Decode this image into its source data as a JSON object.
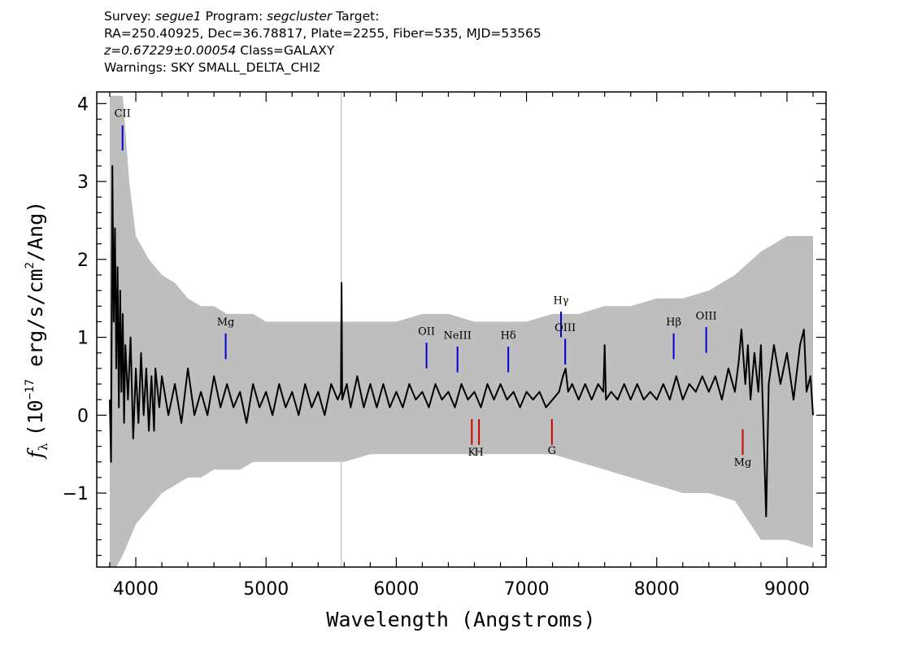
{
  "header": {
    "line1": {
      "survey_label": "Survey:",
      "survey": "segue1",
      "program_label": "Program:",
      "program": "segcluster",
      "target_label": "Target:"
    },
    "line2": "RA=250.40925, Dec=36.78817, Plate=2255, Fiber=535, MJD=53565",
    "line3": {
      "z": "z=0.67229±0.00054",
      "class": "Class=GALAXY"
    },
    "line4": "Warnings: SKY SMALL_DELTA_CHI2"
  },
  "chart_data": {
    "type": "line",
    "xlabel": "Wavelength (Angstroms)",
    "ylabel": "f_λ (10^-17 erg/s/cm^2/Ang)",
    "ylabel_parts": {
      "f": "f",
      "lambda": "λ",
      "unit_a": "(10",
      "exp_a": "−17",
      "unit_b": " erg/s/cm",
      "exp_b": "2",
      "unit_c": "/Ang)"
    },
    "xlim": [
      3700,
      9300
    ],
    "ylim": [
      -1.95,
      4.15
    ],
    "xticks": [
      4000,
      5000,
      6000,
      7000,
      8000,
      9000
    ],
    "xtick_labels": [
      "4000",
      "5000",
      "6000",
      "7000",
      "8000",
      "9000"
    ],
    "yticks": [
      -1,
      0,
      1,
      2,
      3,
      4
    ],
    "ytick_labels": [
      "−1",
      "0",
      "1",
      "2",
      "3",
      "4"
    ],
    "grid": false,
    "colors": {
      "flux": "#000000",
      "error": "#bebebe",
      "emission": "#0000cc",
      "absorption": "#cc0000"
    },
    "sky_line": {
      "x": 5578
    },
    "series": [
      {
        "role": "flux",
        "points": [
          [
            3800,
            0.2
          ],
          [
            3810,
            -0.6
          ],
          [
            3820,
            3.2
          ],
          [
            3830,
            1.2
          ],
          [
            3840,
            2.4
          ],
          [
            3850,
            0.6
          ],
          [
            3860,
            1.9
          ],
          [
            3870,
            0.1
          ],
          [
            3880,
            1.6
          ],
          [
            3890,
            0.3
          ],
          [
            3900,
            1.3
          ],
          [
            3910,
            -0.1
          ],
          [
            3920,
            0.9
          ],
          [
            3940,
            0.2
          ],
          [
            3960,
            1.0
          ],
          [
            3980,
            -0.3
          ],
          [
            4000,
            0.6
          ],
          [
            4020,
            -0.1
          ],
          [
            4040,
            0.8
          ],
          [
            4060,
            0.0
          ],
          [
            4080,
            0.6
          ],
          [
            4100,
            -0.2
          ],
          [
            4120,
            0.5
          ],
          [
            4140,
            -0.2
          ],
          [
            4150,
            0.6
          ],
          [
            4180,
            0.1
          ],
          [
            4200,
            0.5
          ],
          [
            4250,
            0.0
          ],
          [
            4300,
            0.4
          ],
          [
            4350,
            -0.1
          ],
          [
            4400,
            0.6
          ],
          [
            4450,
            0.0
          ],
          [
            4500,
            0.3
          ],
          [
            4550,
            0.0
          ],
          [
            4600,
            0.5
          ],
          [
            4650,
            0.1
          ],
          [
            4700,
            0.4
          ],
          [
            4750,
            0.1
          ],
          [
            4800,
            0.3
          ],
          [
            4850,
            -0.1
          ],
          [
            4900,
            0.4
          ],
          [
            4950,
            0.1
          ],
          [
            5000,
            0.3
          ],
          [
            5050,
            0.0
          ],
          [
            5100,
            0.4
          ],
          [
            5150,
            0.1
          ],
          [
            5200,
            0.3
          ],
          [
            5250,
            0.0
          ],
          [
            5300,
            0.4
          ],
          [
            5350,
            0.1
          ],
          [
            5400,
            0.3
          ],
          [
            5450,
            0.0
          ],
          [
            5500,
            0.4
          ],
          [
            5550,
            0.2
          ],
          [
            5575,
            0.3
          ],
          [
            5580,
            1.7
          ],
          [
            5585,
            0.2
          ],
          [
            5620,
            0.4
          ],
          [
            5650,
            0.1
          ],
          [
            5700,
            0.5
          ],
          [
            5750,
            0.1
          ],
          [
            5800,
            0.4
          ],
          [
            5850,
            0.1
          ],
          [
            5900,
            0.4
          ],
          [
            5950,
            0.1
          ],
          [
            6000,
            0.3
          ],
          [
            6050,
            0.1
          ],
          [
            6100,
            0.4
          ],
          [
            6150,
            0.2
          ],
          [
            6200,
            0.3
          ],
          [
            6250,
            0.1
          ],
          [
            6300,
            0.4
          ],
          [
            6350,
            0.2
          ],
          [
            6400,
            0.3
          ],
          [
            6450,
            0.1
          ],
          [
            6500,
            0.4
          ],
          [
            6550,
            0.2
          ],
          [
            6600,
            0.3
          ],
          [
            6650,
            0.1
          ],
          [
            6700,
            0.4
          ],
          [
            6750,
            0.2
          ],
          [
            6800,
            0.4
          ],
          [
            6850,
            0.2
          ],
          [
            6900,
            0.3
          ],
          [
            6950,
            0.1
          ],
          [
            7000,
            0.3
          ],
          [
            7050,
            0.2
          ],
          [
            7100,
            0.3
          ],
          [
            7150,
            0.1
          ],
          [
            7200,
            0.2
          ],
          [
            7250,
            0.3
          ],
          [
            7280,
            0.5
          ],
          [
            7300,
            0.6
          ],
          [
            7320,
            0.3
          ],
          [
            7350,
            0.4
          ],
          [
            7400,
            0.2
          ],
          [
            7450,
            0.4
          ],
          [
            7500,
            0.2
          ],
          [
            7550,
            0.4
          ],
          [
            7590,
            0.3
          ],
          [
            7600,
            0.9
          ],
          [
            7610,
            0.2
          ],
          [
            7650,
            0.3
          ],
          [
            7700,
            0.2
          ],
          [
            7750,
            0.4
          ],
          [
            7800,
            0.2
          ],
          [
            7850,
            0.4
          ],
          [
            7900,
            0.2
          ],
          [
            7950,
            0.3
          ],
          [
            8000,
            0.2
          ],
          [
            8050,
            0.4
          ],
          [
            8100,
            0.2
          ],
          [
            8150,
            0.5
          ],
          [
            8200,
            0.2
          ],
          [
            8250,
            0.4
          ],
          [
            8300,
            0.3
          ],
          [
            8350,
            0.5
          ],
          [
            8400,
            0.3
          ],
          [
            8450,
            0.5
          ],
          [
            8500,
            0.2
          ],
          [
            8550,
            0.6
          ],
          [
            8600,
            0.3
          ],
          [
            8630,
            0.7
          ],
          [
            8650,
            1.1
          ],
          [
            8680,
            0.4
          ],
          [
            8700,
            0.9
          ],
          [
            8720,
            0.2
          ],
          [
            8750,
            0.8
          ],
          [
            8780,
            0.3
          ],
          [
            8800,
            0.9
          ],
          [
            8820,
            -0.2
          ],
          [
            8840,
            -1.3
          ],
          [
            8860,
            0.4
          ],
          [
            8900,
            0.9
          ],
          [
            8950,
            0.4
          ],
          [
            9000,
            0.8
          ],
          [
            9050,
            0.2
          ],
          [
            9100,
            0.9
          ],
          [
            9130,
            1.1
          ],
          [
            9150,
            0.3
          ],
          [
            9180,
            0.5
          ],
          [
            9200,
            0.0
          ]
        ]
      }
    ],
    "error_band": [
      [
        3800,
        4.1,
        -2.0
      ],
      [
        3850,
        4.1,
        -2.0
      ],
      [
        3900,
        4.1,
        -1.8
      ],
      [
        3950,
        3.0,
        -1.6
      ],
      [
        4000,
        2.3,
        -1.4
      ],
      [
        4100,
        2.0,
        -1.2
      ],
      [
        4200,
        1.8,
        -1.0
      ],
      [
        4300,
        1.7,
        -0.9
      ],
      [
        4400,
        1.5,
        -0.8
      ],
      [
        4500,
        1.4,
        -0.8
      ],
      [
        4600,
        1.4,
        -0.7
      ],
      [
        4700,
        1.3,
        -0.7
      ],
      [
        4800,
        1.3,
        -0.7
      ],
      [
        4900,
        1.3,
        -0.6
      ],
      [
        5000,
        1.2,
        -0.6
      ],
      [
        5200,
        1.2,
        -0.6
      ],
      [
        5400,
        1.2,
        -0.6
      ],
      [
        5600,
        1.2,
        -0.6
      ],
      [
        5800,
        1.2,
        -0.5
      ],
      [
        6000,
        1.2,
        -0.5
      ],
      [
        6200,
        1.3,
        -0.5
      ],
      [
        6400,
        1.3,
        -0.5
      ],
      [
        6600,
        1.2,
        -0.5
      ],
      [
        6800,
        1.2,
        -0.5
      ],
      [
        7000,
        1.2,
        -0.5
      ],
      [
        7200,
        1.3,
        -0.5
      ],
      [
        7400,
        1.3,
        -0.6
      ],
      [
        7600,
        1.4,
        -0.7
      ],
      [
        7800,
        1.4,
        -0.8
      ],
      [
        8000,
        1.5,
        -0.9
      ],
      [
        8200,
        1.5,
        -1.0
      ],
      [
        8400,
        1.6,
        -1.0
      ],
      [
        8600,
        1.8,
        -1.1
      ],
      [
        8800,
        2.1,
        -1.6
      ],
      [
        9000,
        2.3,
        -1.6
      ],
      [
        9200,
        2.3,
        -1.7
      ]
    ],
    "annotations": [
      {
        "label": "CII",
        "kind": "emission",
        "x": 3898,
        "y0": 3.4,
        "y1": 3.72,
        "label_y": 3.83
      },
      {
        "label": "Mg",
        "kind": "emission",
        "x": 4690,
        "y0": 0.72,
        "y1": 1.05,
        "label_y": 1.15
      },
      {
        "label": "OII",
        "kind": "emission",
        "x": 6232,
        "y0": 0.6,
        "y1": 0.93,
        "label_y": 1.03
      },
      {
        "label": "NeIII",
        "kind": "emission",
        "x": 6470,
        "y0": 0.55,
        "y1": 0.88,
        "label_y": 0.98
      },
      {
        "label": "Hδ",
        "kind": "emission",
        "x": 6860,
        "y0": 0.55,
        "y1": 0.88,
        "label_y": 0.98
      },
      {
        "label": "Hγ",
        "kind": "emission",
        "x": 7265,
        "y0": 1.0,
        "y1": 1.33,
        "label_y": 1.43
      },
      {
        "label": "OIII",
        "kind": "emission",
        "x": 7297,
        "y0": 0.65,
        "y1": 0.98,
        "label_y": 1.08
      },
      {
        "label": "Hβ",
        "kind": "emission",
        "x": 8130,
        "y0": 0.72,
        "y1": 1.05,
        "label_y": 1.15
      },
      {
        "label": "OIII",
        "kind": "emission",
        "x": 8380,
        "y0": 0.8,
        "y1": 1.13,
        "label_y": 1.23
      },
      {
        "label": "K",
        "kind": "absorption",
        "x": 6580,
        "y0": -0.05,
        "y1": -0.38,
        "label_y": -0.52
      },
      {
        "label": "H",
        "kind": "absorption",
        "x": 6635,
        "y0": -0.05,
        "y1": -0.38,
        "label_y": -0.52
      },
      {
        "label": "G",
        "kind": "absorption",
        "x": 7195,
        "y0": -0.05,
        "y1": -0.38,
        "label_y": -0.5
      },
      {
        "label": "Mg",
        "kind": "absorption",
        "x": 8660,
        "y0": -0.18,
        "y1": -0.51,
        "label_y": -0.65
      }
    ]
  }
}
